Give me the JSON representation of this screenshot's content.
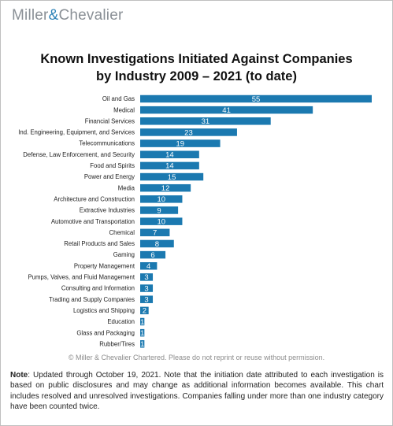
{
  "brand": {
    "name_left": "Miller",
    "ampersand": "&",
    "name_right": "Chevalier"
  },
  "chart_data": {
    "type": "bar",
    "orientation": "horizontal",
    "title_line1": "Known Investigations Initiated Against Companies",
    "title_line2": "by Industry 2009 – 2021 (to date)",
    "categories": [
      "Oil and Gas",
      "Medical",
      "Financial Services",
      "Ind. Engineering, Equipment, and Services",
      "Telecommunications",
      "Defense, Law Enforcement, and Security",
      "Food and Spirits",
      "Power and Energy",
      "Media",
      "Architecture and Construction",
      "Extractive Industries",
      "Automotive and Transportation",
      "Chemical",
      "Retail Products and Sales",
      "Gaming",
      "Property Management",
      "Pumps, Valves, and Fluid Management",
      "Consulting and Information",
      "Trading and Supply Companies",
      "Logistics and Shipping",
      "Education",
      "Glass and Packaging",
      "Rubber/Tires"
    ],
    "values": [
      55,
      41,
      31,
      23,
      19,
      14,
      14,
      15,
      12,
      10,
      9,
      10,
      7,
      8,
      6,
      4,
      3,
      3,
      3,
      2,
      1,
      1,
      1
    ],
    "bar_color": "#1b79b0",
    "label_color": "#ffffff",
    "grid": false,
    "legend": false
  },
  "copyright": "© Miller & Chevalier Chartered. Please do not reprint or reuse without permission.",
  "note": {
    "label": "Note",
    "text": ": Updated through October 19, 2021. Note that the initiation date attributed to each investigation is based on public disclosures and may change as additional information becomes available. This chart includes resolved and unresolved investigations. Companies falling under more than one industry category have been counted twice."
  }
}
